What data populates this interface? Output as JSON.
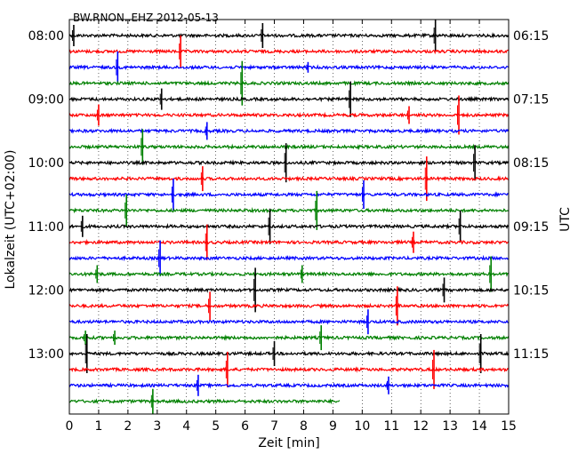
{
  "chart_data": {
    "type": "line",
    "title": "BW.RNON..EHZ 2012-05-13",
    "xlabel": "Zeit  [min]",
    "ylabel_left": "Lokalzeit (UTC+02:00)",
    "ylabel_right": "UTC",
    "xlim": [
      0,
      15
    ],
    "x_ticks": [
      "0",
      "1",
      "2",
      "3",
      "4",
      "5",
      "6",
      "7",
      "8",
      "9",
      "10",
      "11",
      "12",
      "13",
      "14",
      "15"
    ],
    "left_ticks": [
      "08:00",
      "09:00",
      "10:00",
      "11:00",
      "12:00",
      "13:00"
    ],
    "right_ticks": [
      "06:15",
      "07:15",
      "08:15",
      "09:15",
      "10:15",
      "11:15"
    ],
    "trace_color_cycle": [
      "#000000",
      "#ff0000",
      "#0000ff",
      "#008000"
    ],
    "grid": "vertical dotted at each minute",
    "traces": [
      {
        "color": "#000000",
        "end": 15,
        "spikes": [
          [
            0.15,
            12
          ],
          [
            6.6,
            14
          ],
          [
            12.5,
            18
          ]
        ]
      },
      {
        "color": "#ff0000",
        "end": 15,
        "spikes": [
          [
            3.8,
            18
          ]
        ]
      },
      {
        "color": "#0000ff",
        "end": 15,
        "spikes": [
          [
            1.65,
            18
          ],
          [
            8.15,
            6
          ]
        ]
      },
      {
        "color": "#008000",
        "end": 15,
        "spikes": [
          [
            5.9,
            25
          ]
        ]
      },
      {
        "color": "#000000",
        "end": 15,
        "spikes": [
          [
            3.15,
            12
          ],
          [
            9.6,
            20
          ]
        ]
      },
      {
        "color": "#ff0000",
        "end": 15,
        "spikes": [
          [
            1.0,
            12
          ],
          [
            11.6,
            10
          ],
          [
            13.3,
            22
          ]
        ]
      },
      {
        "color": "#0000ff",
        "end": 15,
        "spikes": [
          [
            4.7,
            10
          ]
        ]
      },
      {
        "color": "#008000",
        "end": 15,
        "spikes": [
          [
            2.5,
            20
          ]
        ]
      },
      {
        "color": "#000000",
        "end": 15,
        "spikes": [
          [
            7.4,
            22
          ],
          [
            13.85,
            20
          ]
        ]
      },
      {
        "color": "#ff0000",
        "end": 15,
        "spikes": [
          [
            4.55,
            14
          ],
          [
            12.2,
            25
          ]
        ]
      },
      {
        "color": "#0000ff",
        "end": 15,
        "spikes": [
          [
            3.55,
            18
          ],
          [
            10.05,
            16
          ]
        ]
      },
      {
        "color": "#008000",
        "end": 15,
        "spikes": [
          [
            1.95,
            18
          ],
          [
            8.45,
            22
          ]
        ]
      },
      {
        "color": "#000000",
        "end": 15,
        "spikes": [
          [
            0.45,
            12
          ],
          [
            6.85,
            20
          ],
          [
            13.35,
            18
          ]
        ]
      },
      {
        "color": "#ff0000",
        "end": 15,
        "spikes": [
          [
            4.7,
            20
          ],
          [
            11.75,
            12
          ]
        ]
      },
      {
        "color": "#0000ff",
        "end": 15,
        "spikes": [
          [
            3.1,
            20
          ]
        ]
      },
      {
        "color": "#008000",
        "end": 15,
        "spikes": [
          [
            0.95,
            10
          ],
          [
            7.95,
            10
          ],
          [
            14.4,
            20
          ]
        ]
      },
      {
        "color": "#000000",
        "end": 15,
        "spikes": [
          [
            6.35,
            25
          ],
          [
            12.8,
            14
          ]
        ]
      },
      {
        "color": "#ff0000",
        "end": 15,
        "spikes": [
          [
            4.8,
            16
          ],
          [
            11.2,
            22
          ]
        ]
      },
      {
        "color": "#0000ff",
        "end": 15,
        "spikes": [
          [
            10.2,
            14
          ]
        ]
      },
      {
        "color": "#008000",
        "end": 15,
        "spikes": [
          [
            1.55,
            8
          ],
          [
            8.6,
            14
          ],
          [
            0.55,
            8
          ]
        ]
      },
      {
        "color": "#000000",
        "end": 15,
        "spikes": [
          [
            0.6,
            22
          ],
          [
            7.0,
            14
          ],
          [
            14.05,
            22
          ]
        ]
      },
      {
        "color": "#ff0000",
        "end": 15,
        "spikes": [
          [
            5.4,
            20
          ],
          [
            12.45,
            22
          ]
        ]
      },
      {
        "color": "#0000ff",
        "end": 15,
        "spikes": [
          [
            4.4,
            12
          ],
          [
            10.9,
            10
          ]
        ]
      },
      {
        "color": "#008000",
        "end": 9.25,
        "spikes": [
          [
            2.85,
            14
          ]
        ]
      }
    ]
  }
}
